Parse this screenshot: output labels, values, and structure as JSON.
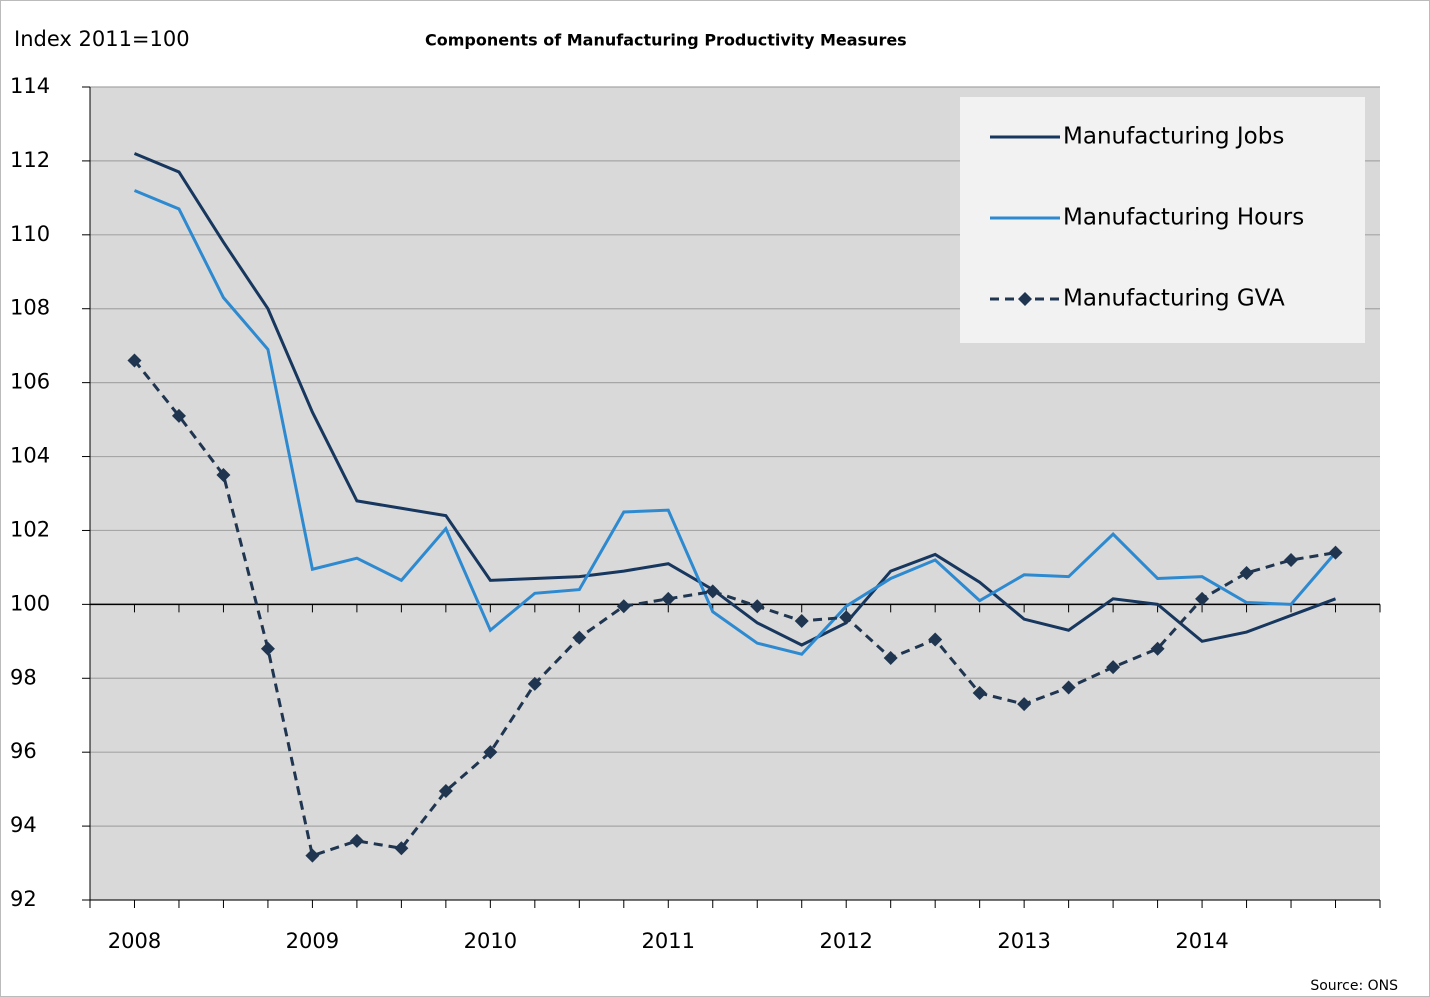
{
  "chart_data": {
    "type": "line",
    "title": "Components of Manufacturing  Productivity Measures",
    "y_label": "Index 2011=100",
    "source": "Source: ONS",
    "categories": [
      "2008",
      null,
      null,
      null,
      "2009",
      null,
      null,
      null,
      "2010",
      null,
      null,
      null,
      "2011",
      null,
      null,
      null,
      "2012",
      null,
      null,
      null,
      "2013",
      null,
      null,
      null,
      "2014",
      null,
      null,
      null
    ],
    "series": [
      {
        "name": "Manufacturing Jobs",
        "color": "#17375e",
        "dash": false,
        "marker": "none",
        "values": [
          112.2,
          111.7,
          109.8,
          108.0,
          105.2,
          102.8,
          102.6,
          102.4,
          100.65,
          100.7,
          100.75,
          100.9,
          101.1,
          100.4,
          99.5,
          98.9,
          99.5,
          100.9,
          101.35,
          100.6,
          99.6,
          99.3,
          100.15,
          100.0,
          99.0,
          99.25,
          99.7,
          100.15
        ]
      },
      {
        "name": "Manufacturing Hours",
        "color": "#2e8ad0",
        "dash": false,
        "marker": "none",
        "values": [
          111.2,
          110.7,
          108.3,
          106.9,
          100.95,
          101.25,
          100.65,
          102.05,
          99.3,
          100.3,
          100.4,
          102.5,
          102.55,
          99.8,
          98.95,
          98.65,
          99.95,
          100.7,
          101.2,
          100.1,
          100.8,
          100.75,
          101.9,
          100.7,
          100.75,
          100.05,
          100.0,
          101.4
        ]
      },
      {
        "name": "Manufacturing GVA",
        "color": "#1f3550",
        "dash": true,
        "marker": "diamond",
        "values": [
          106.6,
          105.1,
          103.5,
          98.8,
          93.2,
          93.6,
          93.4,
          94.95,
          96.0,
          97.85,
          99.1,
          99.95,
          100.15,
          100.35,
          99.95,
          99.55,
          99.65,
          98.55,
          99.05,
          97.6,
          97.3,
          97.75,
          98.3,
          98.8,
          100.15,
          100.85,
          101.2,
          101.4
        ]
      }
    ],
    "ylim": [
      92,
      114
    ],
    "yticks": [
      92,
      94,
      96,
      98,
      100,
      102,
      104,
      106,
      108,
      110,
      112,
      114
    ],
    "baseline": 100,
    "grid": true,
    "legend": "upper right"
  }
}
